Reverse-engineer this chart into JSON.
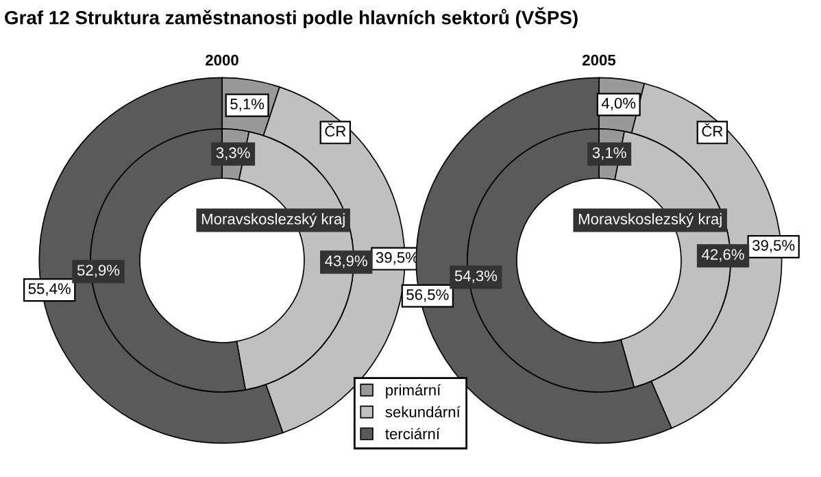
{
  "chart_data": [
    {
      "type": "donut",
      "title": "2000",
      "annotations": [
        "Graf 12 Struktura zaměstnanosti podle hlavních sektorů (VŠPS)"
      ],
      "categories": [
        "primární",
        "sekundární",
        "terciární"
      ],
      "colors": [
        "#999999",
        "#c0c0c0",
        "#5a5a5a"
      ],
      "legend": "bottom right",
      "series": [
        {
          "name": "ČR",
          "values": [
            5.1,
            39.5,
            55.4
          ],
          "value_labels": [
            "5,1%",
            "39,5%",
            "55,4%"
          ]
        },
        {
          "name": "Moravskoslezský kraj",
          "values": [
            3.3,
            43.9,
            52.9
          ],
          "value_labels": [
            "3,3%",
            "43,9%",
            "52,9%"
          ]
        }
      ]
    },
    {
      "type": "donut",
      "title": "2005",
      "categories": [
        null,
        null,
        null
      ],
      "colors": [
        "#999999",
        "#c0c0c0",
        "#5a5a5a"
      ],
      "series": [
        {
          "name": "ČR",
          "values": [
            4.0,
            39.5,
            56.5
          ],
          "value_labels": [
            "4,0%",
            "39,5%",
            "56,5%"
          ]
        },
        {
          "name": "Moravskoslezský kraj",
          "values": [
            3.1,
            42.6,
            54.3
          ],
          "value_labels": [
            "3,1%",
            "42,6%",
            "54,3%"
          ]
        }
      ]
    }
  ]
}
